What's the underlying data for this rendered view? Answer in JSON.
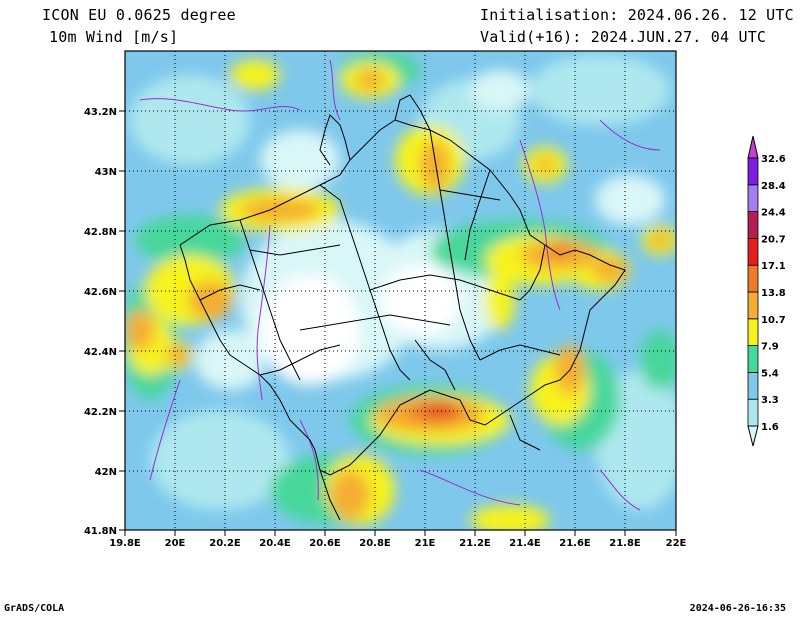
{
  "header": {
    "model_title": "ICON EU 0.0625 degree",
    "variable": "10m Wind [m/s]",
    "initialisation": "Initialisation: 2024.06.26. 12 UTC",
    "valid": "Valid(+16): 2024.JUN.27. 04 UTC"
  },
  "axes": {
    "lon_ticks": [
      "19.8E",
      "20E",
      "20.2E",
      "20.4E",
      "20.6E",
      "20.8E",
      "21E",
      "21.2E",
      "21.4E",
      "21.6E",
      "21.8E",
      "22E"
    ],
    "lat_ticks": [
      "43.2N",
      "43N",
      "42.8N",
      "42.6N",
      "42.4N",
      "42.2N",
      "42N",
      "41.8N"
    ],
    "lon_range": [
      19.8,
      22.0
    ],
    "lat_range": [
      41.8,
      43.4
    ]
  },
  "colorbar": {
    "levels": [
      "1.6",
      "3.3",
      "5.4",
      "7.9",
      "10.7",
      "13.8",
      "17.1",
      "20.7",
      "24.4",
      "28.4",
      "32.6"
    ],
    "colors": [
      "#d9f7f7",
      "#aee8ee",
      "#7ec8ec",
      "#46d79b",
      "#f7f31e",
      "#f4ae33",
      "#ef7a2b",
      "#e3201c",
      "#b61e52",
      "#a27ff0",
      "#7b1ee0",
      "#c93ed1"
    ]
  },
  "footer": {
    "left": "GrADS/COLA",
    "right": "2024-06-26-16:35"
  }
}
